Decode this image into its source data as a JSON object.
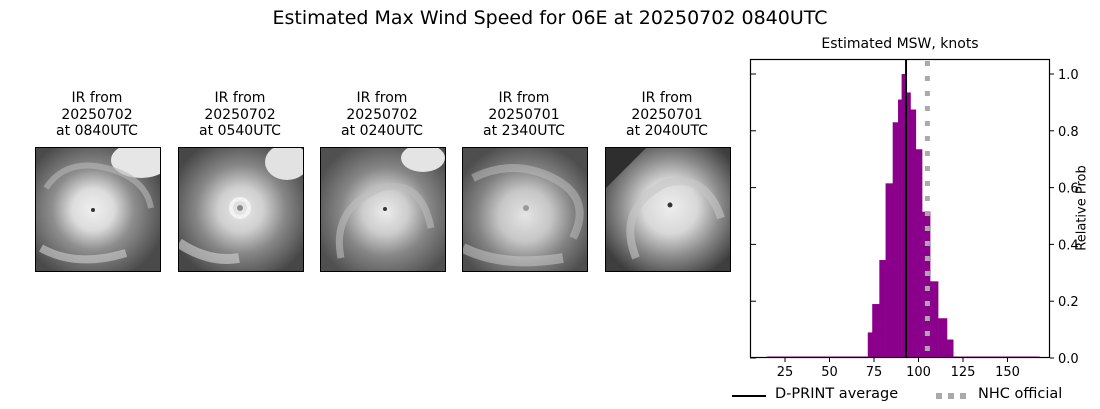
{
  "figure": {
    "suptitle": "Estimated Max Wind Speed for 06E at 20250702 0840UTC"
  },
  "ir_panels": [
    {
      "line1": "IR from",
      "line2": "20250702",
      "line3": "at 0840UTC"
    },
    {
      "line1": "IR from",
      "line2": "20250702",
      "line3": "at 0540UTC"
    },
    {
      "line1": "IR from",
      "line2": "20250702",
      "line3": "at 0240UTC"
    },
    {
      "line1": "IR from",
      "line2": "20250701",
      "line3": "at 2340UTC"
    },
    {
      "line1": "IR from",
      "line2": "20250701",
      "line3": "at 2040UTC"
    }
  ],
  "chart_data": {
    "type": "bar",
    "title": "Estimated MSW, knots",
    "xlabel": "",
    "ylabel": "Relative Prob",
    "xlim": [
      5,
      175
    ],
    "ylim": [
      0,
      1.05
    ],
    "xticks": [
      25,
      50,
      75,
      100,
      125,
      150
    ],
    "yticks": [
      0.0,
      0.2,
      0.4,
      0.6,
      0.8,
      1.0
    ],
    "ytick_labels": [
      "0.0",
      "0.2",
      "0.4",
      "0.6",
      "0.8",
      "1.0"
    ],
    "y_axis_side": "right",
    "grid": false,
    "bar_color": "#8b008b",
    "baseline_range": [
      15,
      168
    ],
    "bins": [
      {
        "x0": 71.5,
        "x1": 74,
        "value": 0.09
      },
      {
        "x0": 74,
        "x1": 78,
        "value": 0.19
      },
      {
        "x0": 78,
        "x1": 81.5,
        "value": 0.345
      },
      {
        "x0": 81.5,
        "x1": 85.5,
        "value": 0.615
      },
      {
        "x0": 85.5,
        "x1": 88.5,
        "value": 0.83
      },
      {
        "x0": 88.5,
        "x1": 90.5,
        "value": 0.91
      },
      {
        "x0": 90.5,
        "x1": 93,
        "value": 1.0
      },
      {
        "x0": 93,
        "x1": 95.5,
        "value": 0.935
      },
      {
        "x0": 95.5,
        "x1": 98.5,
        "value": 0.875
      },
      {
        "x0": 98.5,
        "x1": 102,
        "value": 0.735
      },
      {
        "x0": 102,
        "x1": 106.5,
        "value": 0.515
      },
      {
        "x0": 106.5,
        "x1": 111,
        "value": 0.27
      },
      {
        "x0": 111,
        "x1": 116,
        "value": 0.14
      },
      {
        "x0": 116,
        "x1": 119.5,
        "value": 0.065
      }
    ],
    "lines": [
      {
        "name": "D-PRINT average",
        "x": 93,
        "style": "solid",
        "color": "#000000"
      },
      {
        "name": "NHC official",
        "x": 105,
        "style": "dotted",
        "color": "#aaaaaa"
      }
    ],
    "legend": {
      "position": "below",
      "entries": [
        "D-PRINT average",
        "NHC official"
      ]
    }
  }
}
